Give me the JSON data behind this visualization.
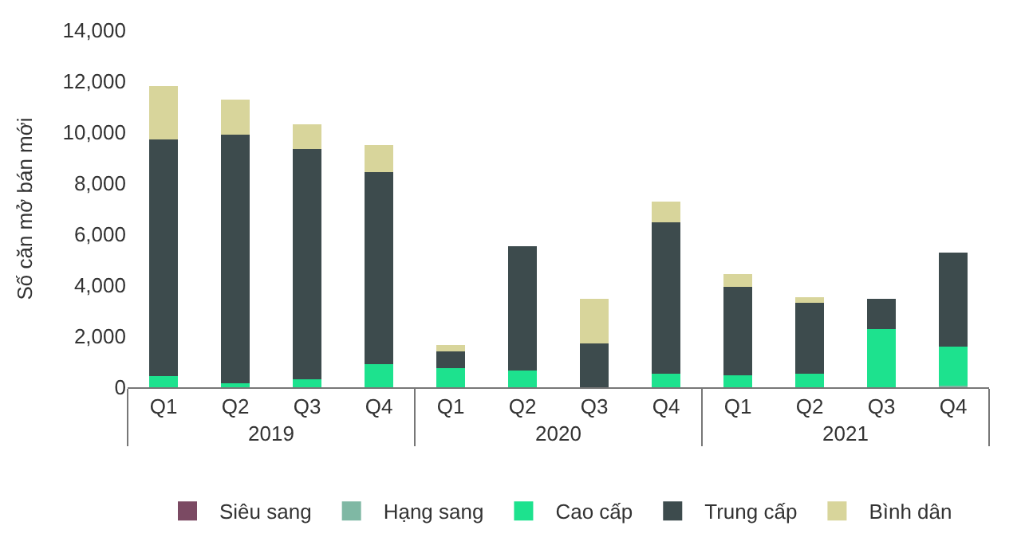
{
  "chart_data": {
    "type": "bar",
    "stacked": true,
    "ylabel": "Số căn mở bán mới",
    "categories": [
      "Q1",
      "Q2",
      "Q3",
      "Q4",
      "Q1",
      "Q2",
      "Q3",
      "Q4",
      "Q1",
      "Q2",
      "Q3",
      "Q4"
    ],
    "annotations": [
      "2019",
      "2020",
      "2021"
    ],
    "series": [
      {
        "name": "Siêu sang",
        "color": "#7b4a63",
        "values": [
          0,
          0,
          0,
          0,
          0,
          0,
          0,
          0,
          0,
          0,
          0,
          0
        ]
      },
      {
        "name": "Hạng sang",
        "color": "#7fb8a4",
        "values": [
          0,
          0,
          0,
          0,
          0,
          0,
          0,
          0,
          0,
          0,
          0,
          50
        ]
      },
      {
        "name": "Cao cấp",
        "color": "#1de28e",
        "values": [
          430,
          150,
          300,
          900,
          740,
          650,
          0,
          520,
          460,
          520,
          2280,
          1530
        ]
      },
      {
        "name": "Trung cấp",
        "color": "#3d4b4d",
        "values": [
          9290,
          9750,
          9030,
          7540,
          670,
          4880,
          1730,
          5960,
          3490,
          2800,
          1190,
          3710
        ]
      },
      {
        "name": "Bình dân",
        "color": "#d8d59b",
        "values": [
          2100,
          1380,
          970,
          1060,
          260,
          0,
          1740,
          790,
          480,
          220,
          0,
          0
        ]
      }
    ],
    "ylim": [
      0,
      14000
    ],
    "yticks": [
      0,
      {
        "value": 2000,
        "label": "2,000"
      },
      {
        "value": 4000,
        "label": "4,000"
      },
      {
        "value": 6000,
        "label": "6,000"
      },
      {
        "value": 8000,
        "label": "8,000"
      },
      {
        "value": 10000,
        "label": "10,000"
      },
      {
        "value": 12000,
        "label": "12,000"
      },
      {
        "value": 14000,
        "label": "14,000"
      }
    ],
    "legend": "bottom"
  }
}
